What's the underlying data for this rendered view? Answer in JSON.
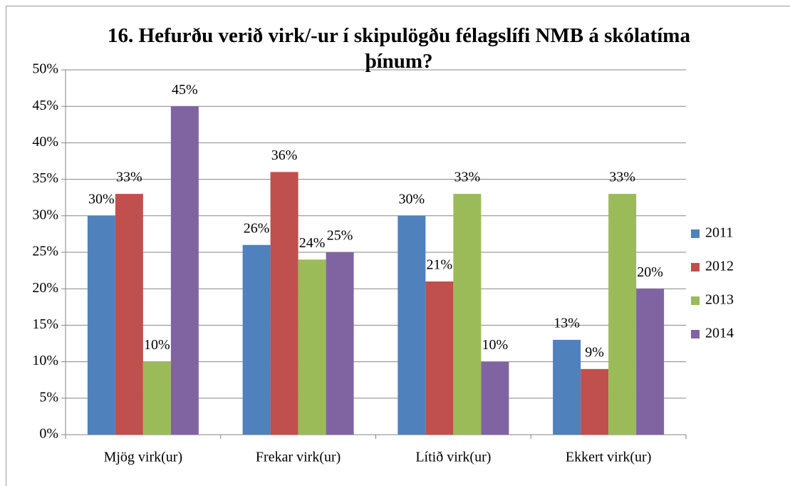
{
  "chart_data": {
    "type": "bar",
    "title": "16. Hefurðu verið virk/-ur í skipulögðu félagslífi NMB á skólatíma þínum?",
    "categories": [
      "Mjög virk(ur)",
      "Frekar virk(ur)",
      "Lítið virk(ur)",
      "Ekkert virk(ur)"
    ],
    "series": [
      {
        "name": "2011",
        "color": "#4f81bd",
        "values": [
          30,
          26,
          30,
          13
        ],
        "value_labels": [
          "30%",
          "26%",
          "30%",
          "13%"
        ]
      },
      {
        "name": "2012",
        "color": "#c0504d",
        "values": [
          33,
          36,
          21,
          9
        ],
        "value_labels": [
          "33%",
          "36%",
          "21%",
          "9%"
        ]
      },
      {
        "name": "2013",
        "color": "#9bbb59",
        "values": [
          10,
          24,
          33,
          33
        ],
        "value_labels": [
          "10%",
          "24%",
          "33%",
          "33%"
        ]
      },
      {
        "name": "2014",
        "color": "#8064a2",
        "values": [
          45,
          25,
          10,
          20
        ],
        "value_labels": [
          "45%",
          "25%",
          "10%",
          "20%"
        ]
      }
    ],
    "ylim": [
      0,
      50
    ],
    "yticks": [
      {
        "value": 0,
        "label": "0%"
      },
      {
        "value": 5,
        "label": "5%"
      },
      {
        "value": 10,
        "label": "10%"
      },
      {
        "value": 15,
        "label": "15%"
      },
      {
        "value": 20,
        "label": "20%"
      },
      {
        "value": 25,
        "label": "25%"
      },
      {
        "value": 30,
        "label": "30%"
      },
      {
        "value": 35,
        "label": "35%"
      },
      {
        "value": 40,
        "label": "40%"
      },
      {
        "value": 45,
        "label": "45%"
      },
      {
        "value": 50,
        "label": "50%"
      }
    ],
    "grid": true,
    "legend": "right"
  }
}
